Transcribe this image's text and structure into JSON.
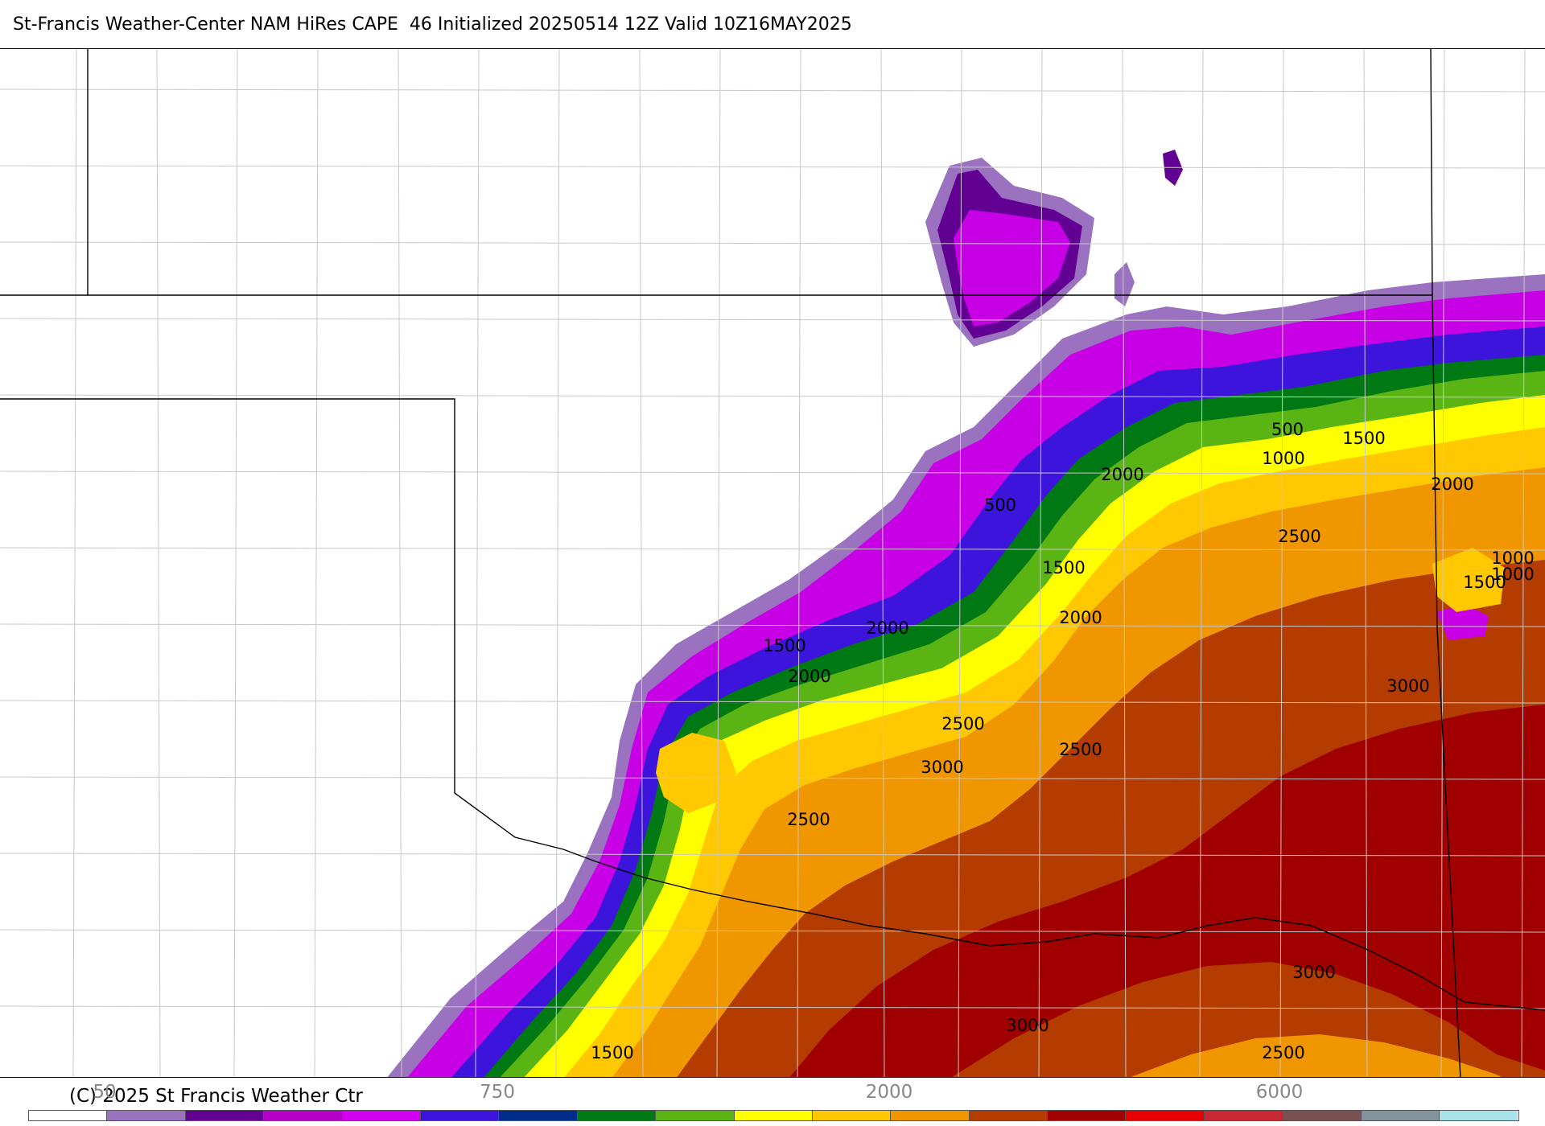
{
  "title": "St-Francis Weather-Center NAM HiRes CAPE  46 Initialized 20250514 12Z Valid 10Z16MAY2025",
  "copyright": "(C) 2025 St Francis Weather Ctr",
  "legend": {
    "tick_labels": [
      "50",
      "750",
      "2000",
      "6000"
    ],
    "colors": [
      "#ffffff",
      "#9b72c0",
      "#620094",
      "#b400c8",
      "#d200f0",
      "#3c14dc",
      "#002d8c",
      "#007814",
      "#5ab414",
      "#ffff00",
      "#ffc800",
      "#f09600",
      "#b43c00",
      "#a00000",
      "#e60000",
      "#c82832",
      "#7a5050",
      "#82939b",
      "#a8e2ea"
    ]
  },
  "palette": {
    "lavender": "#9b72c0",
    "dark_purple": "#620094",
    "magenta": "#c800e6",
    "blue": "#3c14dc",
    "navy": "#002d8c",
    "dark_green": "#007814",
    "green": "#5ab414",
    "yellow": "#ffff00",
    "gold": "#ffc800",
    "orange": "#f09600",
    "rust": "#b43c00",
    "maroon": "#a00000",
    "border": "#000000",
    "county": "#c8c8c8"
  },
  "contour_labels": [
    "500",
    "1000",
    "1500",
    "2000",
    "2500",
    "3000"
  ],
  "map_labels": [
    {
      "text": "500"
    },
    {
      "text": "1500"
    },
    {
      "text": "1000"
    },
    {
      "text": "2000"
    },
    {
      "text": "2000"
    },
    {
      "text": "500"
    },
    {
      "text": "2500"
    },
    {
      "text": "1500"
    },
    {
      "text": "1000"
    },
    {
      "text": "1500"
    },
    {
      "text": "1000"
    },
    {
      "text": "2000"
    },
    {
      "text": "2000"
    },
    {
      "text": "1500"
    },
    {
      "text": "2000"
    },
    {
      "text": "3000"
    },
    {
      "text": "2500"
    },
    {
      "text": "2500"
    },
    {
      "text": "3000"
    },
    {
      "text": "2500"
    },
    {
      "text": "3000"
    },
    {
      "text": "3000"
    },
    {
      "text": "1500"
    },
    {
      "text": "2500"
    }
  ]
}
